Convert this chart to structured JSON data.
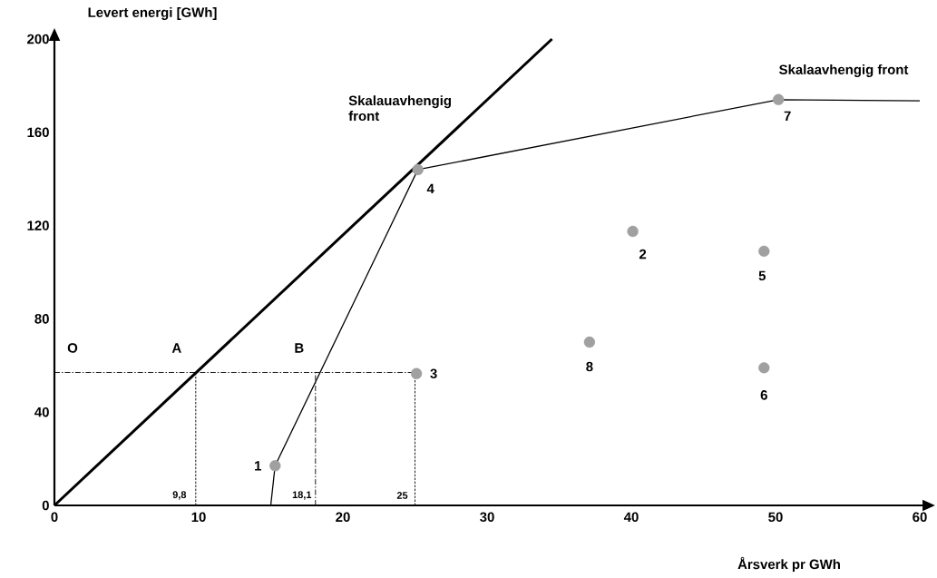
{
  "chart_data": {
    "type": "scatter",
    "xlabel": "Årsverk pr GWh",
    "ylabel": "Levert energi [GWh]",
    "xlim": [
      0,
      60
    ],
    "ylim": [
      0,
      200
    ],
    "xticks": [
      0,
      10,
      20,
      30,
      40,
      50,
      60
    ],
    "yticks": [
      0,
      40,
      80,
      120,
      160,
      200
    ],
    "series": [
      {
        "type": "line",
        "x": [
          0,
          34.5
        ],
        "values": [
          0,
          200
        ],
        "color": "#000000",
        "line_style": "solid",
        "marker": "none"
      },
      {
        "type": "line",
        "x": [
          15,
          15.3,
          25.2,
          50.2,
          60
        ],
        "values": [
          0,
          17,
          144,
          174,
          173.5
        ],
        "color": "#000000",
        "line_style": "solid",
        "marker": "none"
      },
      {
        "type": "line",
        "x": [
          0,
          25
        ],
        "values": [
          57,
          57
        ],
        "color": "#000000",
        "line_style": "dashed",
        "marker": "none"
      },
      {
        "type": "line",
        "x": [
          9.8,
          9.8
        ],
        "values": [
          0,
          57
        ],
        "color": "#000000",
        "line_style": "dotted",
        "marker": "none"
      },
      {
        "type": "line",
        "x": [
          18.1,
          18.1
        ],
        "values": [
          0,
          57
        ],
        "color": "#000000",
        "line_style": "dashed",
        "marker": "none"
      },
      {
        "type": "line",
        "x": [
          25,
          25
        ],
        "values": [
          0,
          57
        ],
        "color": "#000000",
        "line_style": "dotted",
        "marker": "none"
      },
      {
        "x": [
          15.3,
          40.1,
          25.1,
          25.2,
          49.2,
          49.2,
          50.2,
          37.1
        ],
        "values": [
          17,
          117.5,
          56.5,
          144,
          109,
          59,
          174,
          70
        ],
        "color": "#a0a0a0",
        "marker": "circle"
      }
    ],
    "annotations": [
      {
        "text": "1",
        "x": 15.3,
        "y": 17
      },
      {
        "text": "2",
        "x": 40.1,
        "y": 117.5
      },
      {
        "text": "3",
        "x": 25.1,
        "y": 56.5
      },
      {
        "text": "4",
        "x": 25.2,
        "y": 144
      },
      {
        "text": "5",
        "x": 49.2,
        "y": 109
      },
      {
        "text": "6",
        "x": 49.2,
        "y": 59
      },
      {
        "text": "7",
        "x": 50.2,
        "y": 174
      },
      {
        "text": "8",
        "x": 37.1,
        "y": 70
      },
      {
        "text": "O",
        "x": 0,
        "y": 57
      },
      {
        "text": "A",
        "x": 9.8,
        "y": 57
      },
      {
        "text": "B",
        "x": 18.1,
        "y": 57
      },
      {
        "text": "9,8",
        "x": 9.8,
        "y": 0
      },
      {
        "text": "18,1",
        "x": 18.1,
        "y": 0
      },
      {
        "text": "25",
        "x": 25,
        "y": 0
      },
      "Skalauavhengig front",
      "Skalaavhengig front"
    ]
  }
}
